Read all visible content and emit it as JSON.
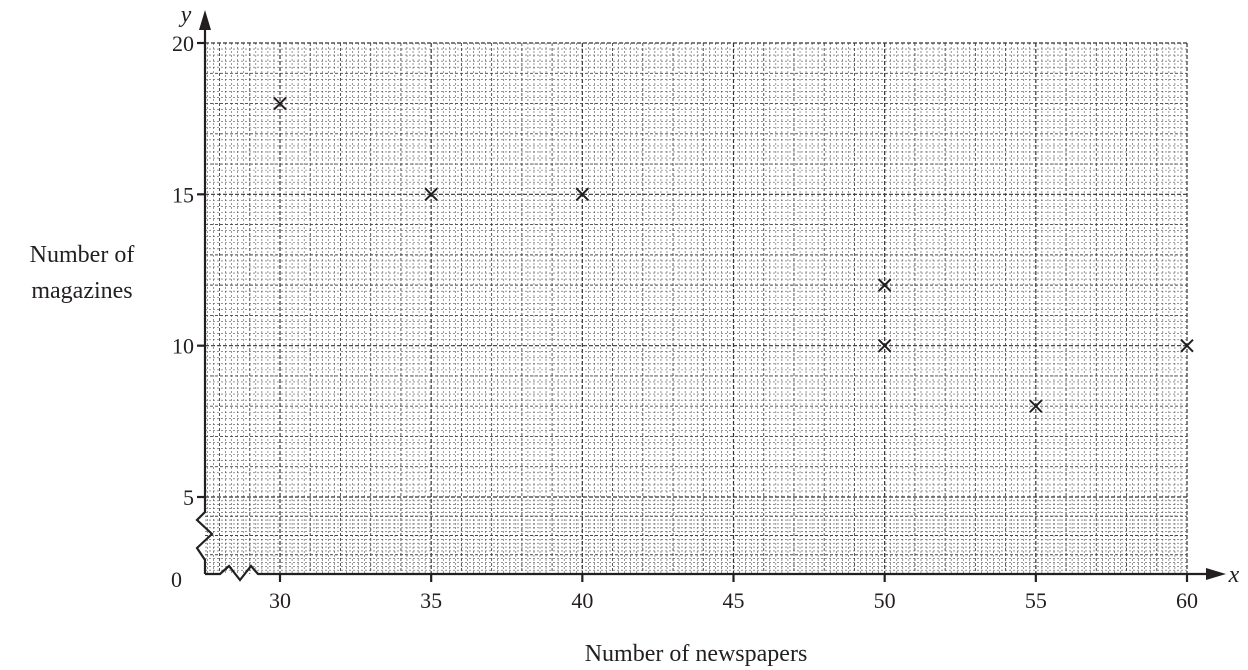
{
  "chart_data": {
    "type": "scatter",
    "title": "",
    "xlabel": "Number of newspapers",
    "ylabel_line1": "Number of",
    "ylabel_line2": "magazines",
    "x_axis_symbol": "x",
    "y_axis_symbol": "y",
    "origin_label": "0",
    "xlim": [
      27.5,
      60
    ],
    "ylim": [
      0,
      20
    ],
    "x_ticks": [
      30,
      35,
      40,
      45,
      50,
      55,
      60
    ],
    "y_ticks": [
      5,
      10,
      15,
      20
    ],
    "x_axis_break": true,
    "y_axis_break": true,
    "grid": true,
    "legend": "none",
    "points": [
      {
        "x": 30,
        "y": 18
      },
      {
        "x": 35,
        "y": 15
      },
      {
        "x": 40,
        "y": 15
      },
      {
        "x": 50,
        "y": 12
      },
      {
        "x": 50,
        "y": 10
      },
      {
        "x": 55,
        "y": 8
      },
      {
        "x": 60,
        "y": 10
      }
    ]
  }
}
